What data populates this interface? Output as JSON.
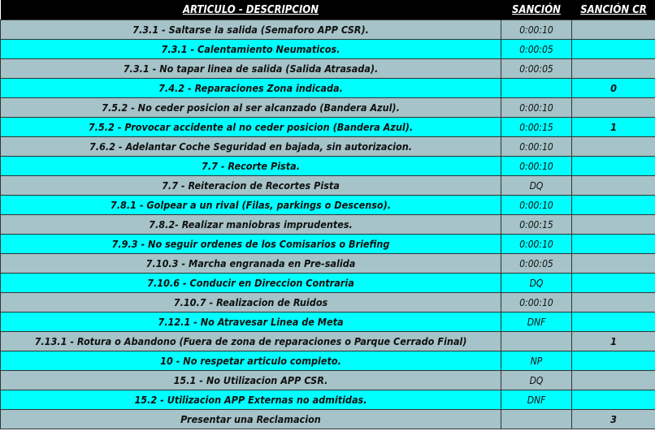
{
  "header": {
    "description": "ARTICULO - DESCRIPCION",
    "sancion": "SANCIÓN",
    "sancion_cr": "SANCIÓN CR"
  },
  "colors": {
    "header_bg": "#000000",
    "row_gray": "#a5c3c8",
    "row_cyan": "#00ffff"
  },
  "rows": [
    {
      "description": "7.3.1 - Saltarse la salida (Semaforo APP CSR).",
      "sancion": "0:00:10",
      "cr": ""
    },
    {
      "description": "7.3.1 - Calentamiento Neumaticos.",
      "sancion": "0:00:05",
      "cr": ""
    },
    {
      "description": "7.3.1 - No tapar linea de salida (Salida Atrasada).",
      "sancion": "0:00:05",
      "cr": ""
    },
    {
      "description": "7.4.2 - Reparaciones Zona indicada.",
      "sancion": "",
      "cr": "0"
    },
    {
      "description": "7.5.2 - No ceder posicion al ser alcanzado (Bandera Azul).",
      "sancion": "0:00:10",
      "cr": ""
    },
    {
      "description": "7.5.2 - Provocar accidente al no ceder posicion (Bandera Azul).",
      "sancion": "0:00:15",
      "cr": "1"
    },
    {
      "description": "7.6.2 - Adelantar Coche Seguridad en bajada, sin autorizacion.",
      "sancion": "0:00:10",
      "cr": ""
    },
    {
      "description": "7.7 - Recorte Pista.",
      "sancion": "0:00:10",
      "cr": ""
    },
    {
      "description": "7.7 - Reiteracion de Recortes Pista",
      "sancion": "DQ",
      "cr": ""
    },
    {
      "description": "7.8.1 - Golpear a un rival (Filas, parkings o Descenso).",
      "sancion": "0:00:10",
      "cr": ""
    },
    {
      "description": "7.8.2- Realizar maniobras imprudentes.",
      "sancion": "0:00:15",
      "cr": ""
    },
    {
      "description": "7.9.3 - No seguir ordenes de los Comisarios o Briefing",
      "sancion": "0:00:10",
      "cr": ""
    },
    {
      "description": "7.10.3 - Marcha engranada en Pre-salida",
      "sancion": "0:00:05",
      "cr": ""
    },
    {
      "description": "7.10.6 - Conducir en Direccion Contraria",
      "sancion": "DQ",
      "cr": ""
    },
    {
      "description": "7.10.7 - Realizacion de Ruidos",
      "sancion": "0:00:10",
      "cr": ""
    },
    {
      "description": "7.12.1 - No Atravesar Linea de Meta",
      "sancion": "DNF",
      "cr": ""
    },
    {
      "description": "7.13.1 - Rotura o Abandono (Fuera de zona de reparaciones o Parque Cerrado Final)",
      "sancion": "",
      "cr": "1"
    },
    {
      "description": "10 - No respetar articulo completo.",
      "sancion": "NP",
      "cr": ""
    },
    {
      "description": "15.1 - No Utilizacion APP CSR.",
      "sancion": "DQ",
      "cr": ""
    },
    {
      "description": "15.2 - Utilizacion APP Externas no admitidas.",
      "sancion": "DNF",
      "cr": ""
    },
    {
      "description": "Presentar una Reclamacion",
      "sancion": "",
      "cr": "3"
    }
  ]
}
